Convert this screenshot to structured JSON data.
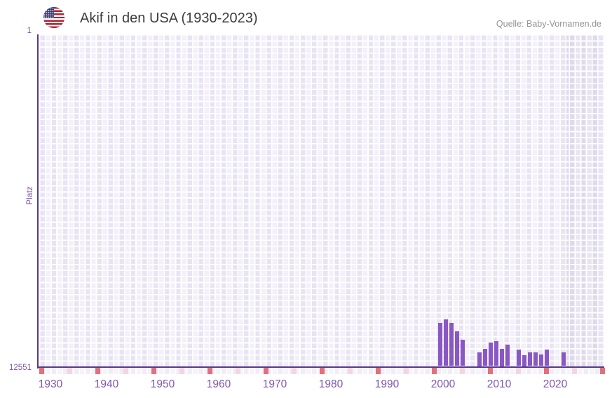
{
  "header": {
    "title": "Akif in den USA (1930-2023)",
    "source": "Quelle: Baby-Vornamen.de"
  },
  "axes": {
    "y_title": "Platz",
    "y_top": "1",
    "y_bottom": "12551",
    "x_ticks": [
      1930,
      1940,
      1950,
      1960,
      1970,
      1980,
      1990,
      2000,
      2010,
      2020
    ]
  },
  "chart_data": {
    "type": "bar",
    "title": "Akif in den USA (1930-2023)",
    "xlabel": "",
    "ylabel": "Platz",
    "x_range": [
      1930,
      2023
    ],
    "y_axis": {
      "top_rank": 1,
      "bottom_rank": 12551,
      "inverted": true
    },
    "grid": true,
    "no_data_band_after_year": 2022,
    "series": [
      {
        "name": "Platz",
        "points": [
          {
            "year": 2000,
            "rank": 10910
          },
          {
            "year": 2001,
            "rank": 10780
          },
          {
            "year": 2002,
            "rank": 10910
          },
          {
            "year": 2003,
            "rank": 11230
          },
          {
            "year": 2004,
            "rank": 11550
          },
          {
            "year": 2007,
            "rank": 12020
          },
          {
            "year": 2008,
            "rank": 11910
          },
          {
            "year": 2009,
            "rank": 11670
          },
          {
            "year": 2010,
            "rank": 11620
          },
          {
            "year": 2011,
            "rank": 11900
          },
          {
            "year": 2012,
            "rank": 11730
          },
          {
            "year": 2014,
            "rank": 11930
          },
          {
            "year": 2015,
            "rank": 12140
          },
          {
            "year": 2016,
            "rank": 12030
          },
          {
            "year": 2017,
            "rank": 12030
          },
          {
            "year": 2018,
            "rank": 12110
          },
          {
            "year": 2019,
            "rank": 11930
          },
          {
            "year": 2022,
            "rank": 12040
          }
        ]
      }
    ]
  },
  "colors": {
    "bar": "#8a58c4",
    "axis_line": "#58398c",
    "tick_text": "#7e57ad",
    "title_text": "#3d3d3d",
    "source_text": "#959399",
    "marker_red": "#e2707a",
    "marker_pink": "#f4d6de"
  }
}
